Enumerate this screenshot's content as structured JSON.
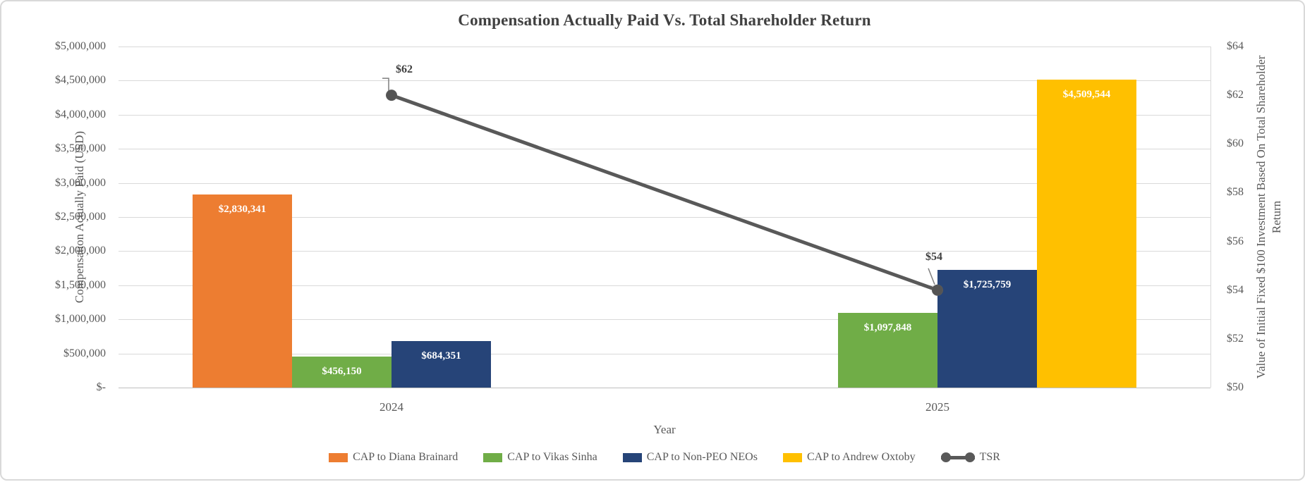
{
  "chart_data": {
    "type": "combo-bar-line",
    "title": "Compensation Actually Paid Vs. Total Shareholder Return",
    "xlabel": "Year",
    "ylabel_left": "Compensation Actually Paid (USD)",
    "ylabel_right": "Value of Initial Fixed $100 Investment  Based On Total Shareholder Return",
    "categories": [
      "2024",
      "2025"
    ],
    "bar_series": [
      {
        "name": "CAP to Diana Brainard",
        "color": "#ED7D31",
        "values": [
          2830341,
          null
        ],
        "value_labels": [
          "$2,830,341",
          null
        ]
      },
      {
        "name": "CAP to Vikas Sinha",
        "color": "#70AD47",
        "values": [
          456150,
          1097848
        ],
        "value_labels": [
          "$456,150",
          "$1,097,848"
        ]
      },
      {
        "name": "CAP to Non-PEO NEOs",
        "color": "#264478",
        "values": [
          684351,
          1725759
        ],
        "value_labels": [
          "$684,351",
          "$1,725,759"
        ]
      },
      {
        "name": "CAP to Andrew Oxtoby",
        "color": "#FFC000",
        "values": [
          null,
          4509544
        ],
        "value_labels": [
          null,
          "$4,509,544"
        ]
      }
    ],
    "line_series": {
      "name": "TSR",
      "color": "#595959",
      "values": [
        62,
        54
      ],
      "value_labels": [
        "$62",
        "$54"
      ]
    },
    "left_axis": {
      "min": 0,
      "max": 5000000,
      "step": 500000,
      "tick_labels": [
        "$5,000,000",
        "$4,500,000",
        "$4,000,000",
        "$3,500,000",
        "$3,000,000",
        "$2,500,000",
        "$2,000,000",
        "$1,500,000",
        "$1,000,000",
        "$500,000",
        "$-"
      ]
    },
    "right_axis": {
      "min": 50,
      "max": 64,
      "step": 2,
      "tick_labels": [
        "$64",
        "$62",
        "$60",
        "$58",
        "$56",
        "$54",
        "$52",
        "$50"
      ]
    },
    "grid": true,
    "legend_position": "bottom"
  },
  "colors": {
    "grid": "#D9D9D9",
    "axis_line": "#BFBFBF",
    "text": "#595959",
    "title": "#404040",
    "bar_value_label": "#FFFFFF",
    "leader_line": "#7F7F7F"
  }
}
